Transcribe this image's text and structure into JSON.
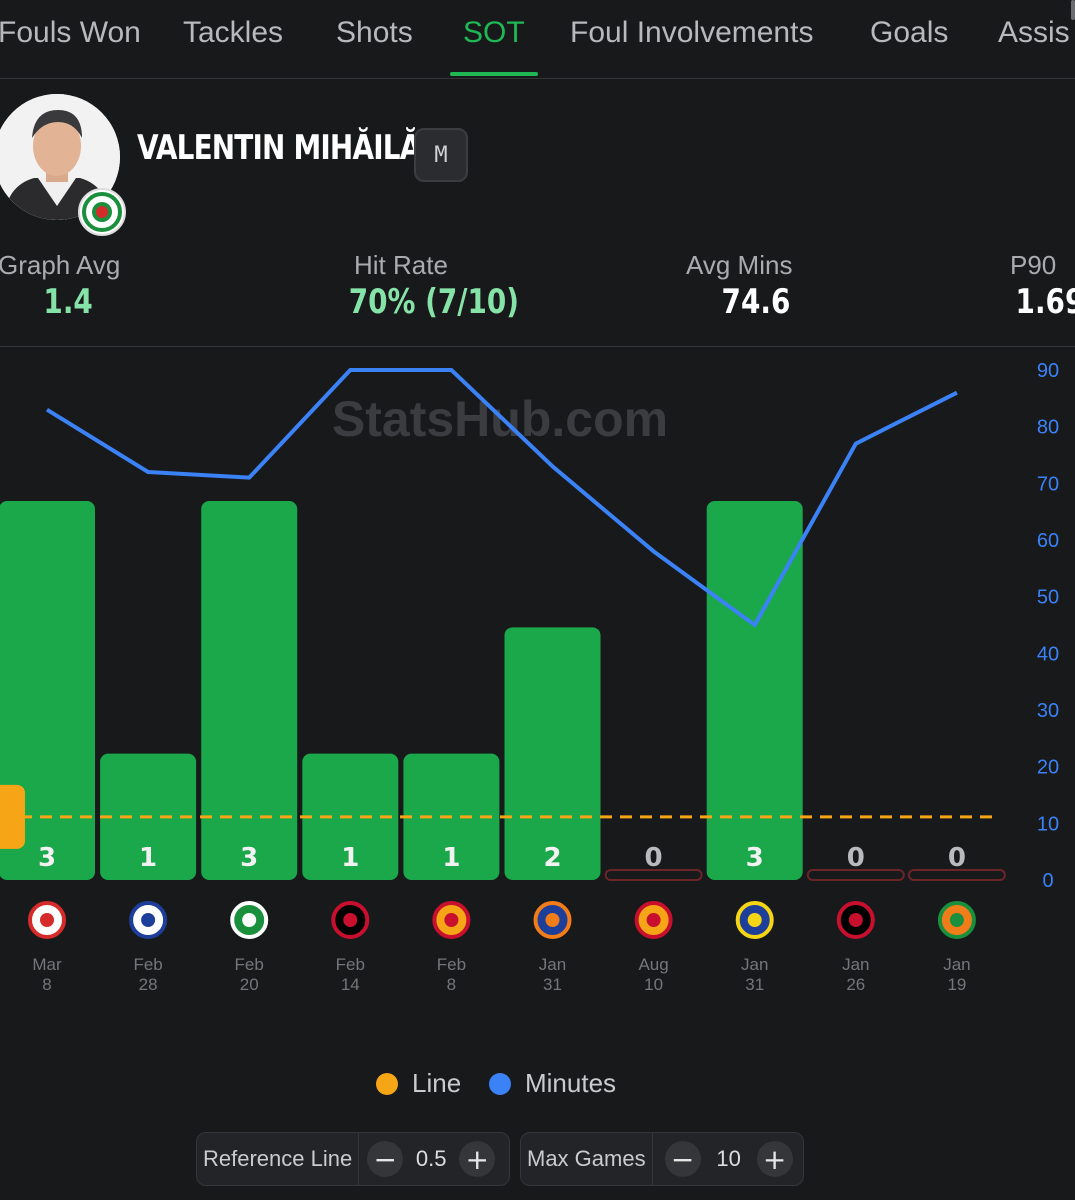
{
  "tabs": [
    {
      "label": "Fouls Won",
      "active": false
    },
    {
      "label": "Tackles",
      "active": false
    },
    {
      "label": "Shots",
      "active": false
    },
    {
      "label": "SOT",
      "active": true
    },
    {
      "label": "Foul Involvements",
      "active": false
    },
    {
      "label": "Goals",
      "active": false
    },
    {
      "label": "Assis",
      "active": false
    }
  ],
  "player": {
    "name": "VALENTIN MIHĂILĂ",
    "position": "M"
  },
  "stats": {
    "graph_avg": {
      "label": "Graph Avg",
      "value": "1.4"
    },
    "hit_rate": {
      "label": "Hit Rate",
      "value": "70% (7/10)"
    },
    "avg_mins": {
      "label": "Avg Mins",
      "value": "74.6"
    },
    "p90": {
      "label": "P90",
      "value": "1.69"
    }
  },
  "chart_data": {
    "type": "bar",
    "watermark": "StatsHub.com",
    "categories": [
      "Mar 8",
      "Feb 28",
      "Feb 20",
      "Feb 14",
      "Feb 8",
      "Jan 31",
      "Aug 10",
      "Jan 31",
      "Jan 26",
      "Jan 19"
    ],
    "date_lines": [
      [
        "Mar",
        "8"
      ],
      [
        "Feb",
        "28"
      ],
      [
        "Feb",
        "20"
      ],
      [
        "Feb",
        "14"
      ],
      [
        "Feb",
        "8"
      ],
      [
        "Jan",
        "31"
      ],
      [
        "Aug",
        "10"
      ],
      [
        "Jan",
        "31"
      ],
      [
        "Jan",
        "26"
      ],
      [
        "Jan",
        "19"
      ]
    ],
    "opponent_icons": [
      "antalyaspor-crest-icon",
      "kasimpasa-crest-icon",
      "kocaelispor-crest-icon",
      "genclerbirligi-crest-icon",
      "galatasaray-crest-icon",
      "basaksehir-crest-icon",
      "goztepe-crest-icon",
      "lecce-crest-icon",
      "ac-milan-crest-icon",
      "venezia-crest-icon"
    ],
    "series": [
      {
        "name": "SOT",
        "values": [
          3,
          1,
          3,
          1,
          1,
          2,
          0,
          3,
          0,
          0
        ]
      },
      {
        "name": "Minutes",
        "values": [
          83,
          72,
          71,
          90,
          90,
          73,
          58,
          45,
          77,
          86
        ]
      }
    ],
    "line_value": 0.5,
    "y_right": {
      "min": 0,
      "max": 90,
      "ticks": [
        0,
        10,
        20,
        30,
        40,
        50,
        60,
        70,
        80,
        90
      ]
    },
    "colors": {
      "bar": "#1aa84b",
      "bar_zero": "#6b2428",
      "minutes": "#3b82f6",
      "line": "#f5a515",
      "axis": "#3b82f6"
    }
  },
  "legend": [
    {
      "label": "Line",
      "color": "#f5a515"
    },
    {
      "label": "Minutes",
      "color": "#3b82f6"
    }
  ],
  "controls": {
    "reference_line": {
      "label": "Reference Line",
      "value": "0.5",
      "minus": "−",
      "plus": "+"
    },
    "max_games": {
      "label": "Max Games",
      "value": "10",
      "minus": "−",
      "plus": "+"
    }
  }
}
